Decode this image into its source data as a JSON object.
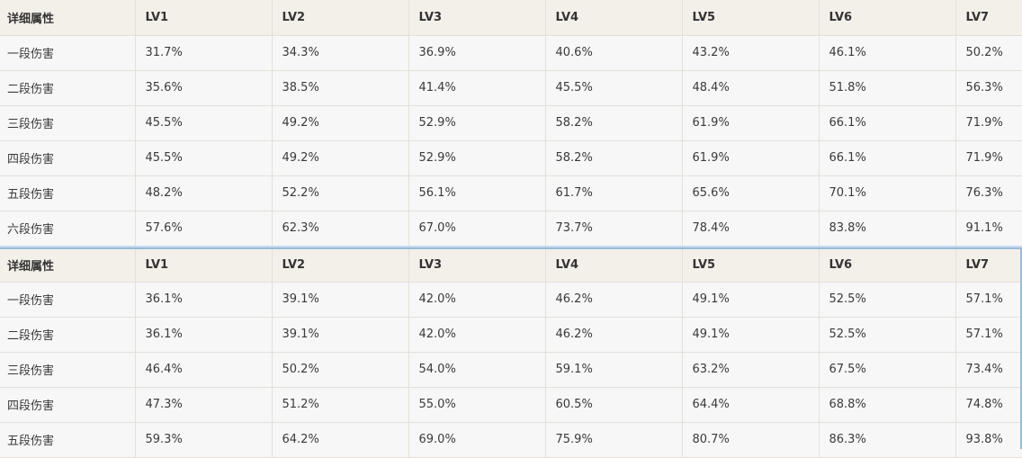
{
  "tables": [
    {
      "headers": [
        "详细属性",
        "LV1",
        "LV2",
        "LV3",
        "LV4",
        "LV5",
        "LV6",
        "LV7"
      ],
      "rows": [
        [
          "一段伤害",
          "31.7%",
          "34.3%",
          "36.9%",
          "40.6%",
          "43.2%",
          "46.1%",
          "50.2%"
        ],
        [
          "二段伤害",
          "35.6%",
          "38.5%",
          "41.4%",
          "45.5%",
          "48.4%",
          "51.8%",
          "56.3%"
        ],
        [
          "三段伤害",
          "45.5%",
          "49.2%",
          "52.9%",
          "58.2%",
          "61.9%",
          "66.1%",
          "71.9%"
        ],
        [
          "四段伤害",
          "45.5%",
          "49.2%",
          "52.9%",
          "58.2%",
          "61.9%",
          "66.1%",
          "71.9%"
        ],
        [
          "五段伤害",
          "48.2%",
          "52.2%",
          "56.1%",
          "61.7%",
          "65.6%",
          "70.1%",
          "76.3%"
        ],
        [
          "六段伤害",
          "57.6%",
          "62.3%",
          "67.0%",
          "73.7%",
          "78.4%",
          "83.8%",
          "91.1%"
        ]
      ]
    },
    {
      "headers": [
        "详细属性",
        "LV1",
        "LV2",
        "LV3",
        "LV4",
        "LV5",
        "LV6",
        "LV7"
      ],
      "rows": [
        [
          "一段伤害",
          "36.1%",
          "39.1%",
          "42.0%",
          "46.2%",
          "49.1%",
          "52.5%",
          "57.1%"
        ],
        [
          "二段伤害",
          "36.1%",
          "39.1%",
          "42.0%",
          "46.2%",
          "49.1%",
          "52.5%",
          "57.1%"
        ],
        [
          "三段伤害",
          "46.4%",
          "50.2%",
          "54.0%",
          "59.1%",
          "63.2%",
          "67.5%",
          "73.4%"
        ],
        [
          "四段伤害",
          "47.3%",
          "51.2%",
          "55.0%",
          "60.5%",
          "64.4%",
          "68.8%",
          "74.8%"
        ],
        [
          "五段伤害",
          "59.3%",
          "64.2%",
          "69.0%",
          "75.9%",
          "80.7%",
          "86.3%",
          "93.8%"
        ]
      ]
    }
  ]
}
